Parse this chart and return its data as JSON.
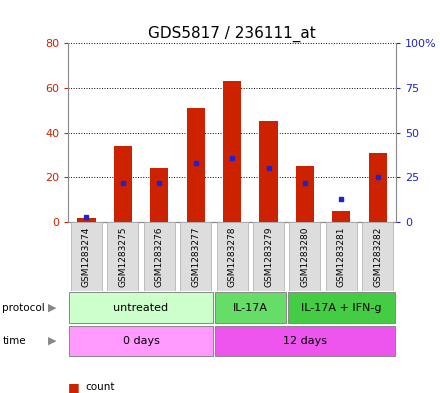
{
  "title": "GDS5817 / 236111_at",
  "samples": [
    "GSM1283274",
    "GSM1283275",
    "GSM1283276",
    "GSM1283277",
    "GSM1283278",
    "GSM1283279",
    "GSM1283280",
    "GSM1283281",
    "GSM1283282"
  ],
  "counts": [
    2,
    34,
    24,
    51,
    63,
    45,
    25,
    5,
    31
  ],
  "percentiles": [
    3,
    22,
    22,
    33,
    36,
    30,
    22,
    13,
    25
  ],
  "ylim_left": [
    0,
    80
  ],
  "ylim_right": [
    0,
    100
  ],
  "yticks_left": [
    0,
    20,
    40,
    60,
    80
  ],
  "yticks_right": [
    0,
    25,
    50,
    75,
    100
  ],
  "ytick_labels_right": [
    "0",
    "25",
    "50",
    "75",
    "100%"
  ],
  "protocol_groups": [
    {
      "label": "untreated",
      "start": 0,
      "end": 4,
      "color": "#ccffcc"
    },
    {
      "label": "IL-17A",
      "start": 4,
      "end": 6,
      "color": "#66dd66"
    },
    {
      "label": "IL-17A + IFN-g",
      "start": 6,
      "end": 9,
      "color": "#44cc44"
    }
  ],
  "time_groups": [
    {
      "label": "0 days",
      "start": 0,
      "end": 4,
      "color": "#ff99ff"
    },
    {
      "label": "12 days",
      "start": 4,
      "end": 9,
      "color": "#ee55ee"
    }
  ],
  "bar_color": "#cc2200",
  "dot_color": "#2222cc",
  "bar_width": 0.5,
  "background_color": "#ffffff",
  "plot_bg_color": "#ffffff",
  "grid_color": "#000000",
  "ylabel_left_color": "#cc2200",
  "ylabel_right_color": "#2222cc",
  "legend_count_color": "#cc2200",
  "legend_pct_color": "#2222cc",
  "sample_bg_color": "#dddddd",
  "title_fontsize": 11
}
